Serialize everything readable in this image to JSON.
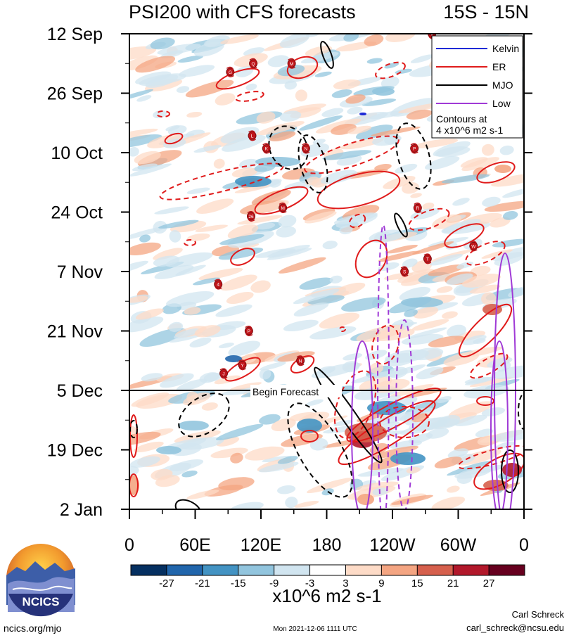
{
  "chart_data": {
    "type": "heatmap",
    "title": "PSI200 with CFS forecasts",
    "region": "15S - 15N",
    "y_ticks": [
      "12 Sep",
      "26 Sep",
      "10 Oct",
      "24 Oct",
      "7 Nov",
      "21 Nov",
      "5 Dec",
      "19 Dec",
      "2 Jan"
    ],
    "x_ticks": [
      "0",
      "60E",
      "120E",
      "180",
      "120W",
      "60W",
      "0"
    ],
    "forecast_label": "Begin Forecast",
    "forecast_start": "5 Dec",
    "legend": {
      "items": [
        {
          "name": "Kelvin",
          "color": "#1f2bd6",
          "dash": false
        },
        {
          "name": "ER",
          "color": "#e01b1b",
          "dash": false
        },
        {
          "name": "MJO",
          "color": "#000000",
          "dash": false
        },
        {
          "name": "Low",
          "color": "#a03ad6",
          "dash": false
        }
      ],
      "note_line1": "Contours at",
      "note_line2": "4 x10^6 m2 s-1"
    },
    "colorbar": {
      "levels": [
        "-27",
        "-21",
        "-15",
        "-9",
        "-3",
        "3",
        "9",
        "15",
        "21",
        "27"
      ],
      "colors": [
        "#053061",
        "#2166ac",
        "#4393c3",
        "#92c5de",
        "#d1e5f0",
        "#ffffff",
        "#fddbc7",
        "#f4a582",
        "#d6604d",
        "#b2182b",
        "#67001f"
      ],
      "units": "x10^6 m2 s-1"
    },
    "storm_labels": [
      {
        "lon": 276,
        "date": "12 Sep",
        "label": "V"
      },
      {
        "lon": 92,
        "date": "21 Sep",
        "label": "G"
      },
      {
        "lon": 113,
        "date": "19 Sep",
        "label": "Q"
      },
      {
        "lon": 148,
        "date": "19 Sep",
        "label": "M"
      },
      {
        "lon": 112,
        "date": "6 Oct",
        "label": "L"
      },
      {
        "lon": 125,
        "date": "9 Oct",
        "label": "K"
      },
      {
        "lon": 161,
        "date": "9 Oct",
        "label": "N"
      },
      {
        "lon": 260,
        "date": "9 Oct",
        "label": "P"
      },
      {
        "lon": 263,
        "date": "23 Oct",
        "label": "R"
      },
      {
        "lon": 140,
        "date": "23 Oct",
        "label": "M"
      },
      {
        "lon": 111,
        "date": "25 Oct",
        "label": "26"
      },
      {
        "lon": 314,
        "date": "1 Nov",
        "label": "W"
      },
      {
        "lon": 272,
        "date": "4 Nov",
        "label": "T"
      },
      {
        "lon": 251,
        "date": "7 Nov",
        "label": "S"
      },
      {
        "lon": 81,
        "date": "10 Nov",
        "label": "4"
      },
      {
        "lon": 109,
        "date": "21 Nov",
        "label": "P"
      },
      {
        "lon": 156,
        "date": "28 Nov",
        "label": "N"
      },
      {
        "lon": 103,
        "date": "29 Nov",
        "label": "Y"
      },
      {
        "lon": 86,
        "date": "1 Dec",
        "label": "J"
      }
    ]
  },
  "branding": {
    "logo_text": "NCICS",
    "url": "ncics.org/mjo",
    "timestamp": "Mon 2021-12-06 1111 UTC",
    "author": "Carl Schreck",
    "email": "carl_schreck@ncsu.edu"
  }
}
